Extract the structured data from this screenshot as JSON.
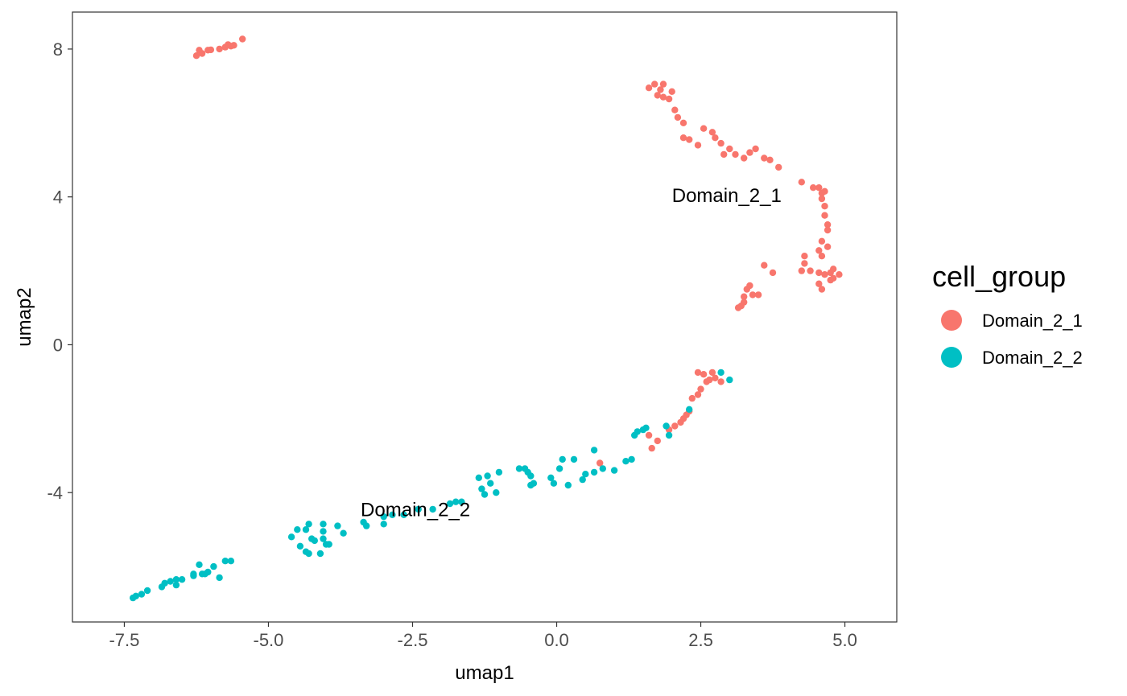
{
  "chart_data": {
    "type": "scatter",
    "xlabel": "umap1",
    "ylabel": "umap2",
    "xlim": [
      -8.4,
      5.9
    ],
    "ylim": [
      -7.5,
      9.0
    ],
    "x_ticks": [
      -7.5,
      -5.0,
      -2.5,
      0.0,
      2.5,
      5.0
    ],
    "x_tick_labels": [
      "-7.5",
      "-5.0",
      "-2.5",
      "0.0",
      "2.5",
      "5.0"
    ],
    "y_ticks": [
      -4,
      0,
      4,
      8
    ],
    "y_tick_labels": [
      "-4",
      "0",
      "4",
      "8"
    ],
    "grid": false,
    "legend": {
      "title": "cell_group",
      "placement": "right",
      "entries": [
        {
          "label": "Domain_2_1",
          "color": "#F8766D"
        },
        {
          "label": "Domain_2_2",
          "color": "#00BFC4"
        }
      ]
    },
    "annotations": [
      {
        "text": "Domain_2_1",
        "x": 2.95,
        "y": 4.0
      },
      {
        "text": "Domain_2_2",
        "x": -2.45,
        "y": -4.5
      }
    ],
    "series": [
      {
        "name": "Domain_2_1",
        "color": "#F8766D",
        "points": [
          [
            -6.25,
            7.82
          ],
          [
            -6.2,
            7.97
          ],
          [
            -6.15,
            7.88
          ],
          [
            -6.05,
            7.97
          ],
          [
            -6.0,
            7.98
          ],
          [
            -5.85,
            8.0
          ],
          [
            -5.75,
            8.05
          ],
          [
            -5.7,
            8.12
          ],
          [
            -5.65,
            8.08
          ],
          [
            -5.6,
            8.1
          ],
          [
            -5.45,
            8.27
          ],
          [
            1.6,
            6.95
          ],
          [
            1.7,
            7.05
          ],
          [
            1.75,
            6.75
          ],
          [
            1.8,
            6.9
          ],
          [
            1.85,
            7.05
          ],
          [
            1.85,
            6.7
          ],
          [
            1.95,
            6.65
          ],
          [
            2.0,
            6.85
          ],
          [
            2.05,
            6.35
          ],
          [
            2.1,
            6.15
          ],
          [
            2.2,
            6.0
          ],
          [
            2.2,
            5.6
          ],
          [
            2.3,
            5.55
          ],
          [
            2.45,
            5.4
          ],
          [
            2.55,
            5.85
          ],
          [
            2.7,
            5.75
          ],
          [
            2.75,
            5.6
          ],
          [
            2.85,
            5.45
          ],
          [
            2.9,
            5.15
          ],
          [
            3.0,
            5.3
          ],
          [
            3.1,
            5.15
          ],
          [
            3.25,
            5.05
          ],
          [
            3.35,
            5.2
          ],
          [
            3.45,
            5.3
          ],
          [
            3.6,
            5.05
          ],
          [
            3.7,
            5.0
          ],
          [
            3.85,
            4.8
          ],
          [
            4.25,
            4.4
          ],
          [
            4.45,
            4.25
          ],
          [
            4.55,
            4.25
          ],
          [
            4.6,
            4.1
          ],
          [
            4.65,
            4.15
          ],
          [
            4.6,
            3.95
          ],
          [
            4.65,
            3.75
          ],
          [
            4.65,
            3.5
          ],
          [
            4.7,
            3.25
          ],
          [
            4.7,
            3.1
          ],
          [
            4.6,
            2.8
          ],
          [
            4.7,
            2.65
          ],
          [
            4.55,
            2.55
          ],
          [
            4.6,
            2.4
          ],
          [
            4.3,
            2.4
          ],
          [
            4.3,
            2.2
          ],
          [
            4.4,
            2.0
          ],
          [
            4.25,
            2.0
          ],
          [
            4.55,
            1.95
          ],
          [
            4.65,
            1.9
          ],
          [
            4.75,
            1.95
          ],
          [
            4.8,
            2.05
          ],
          [
            4.9,
            1.9
          ],
          [
            4.8,
            1.8
          ],
          [
            4.55,
            1.65
          ],
          [
            4.6,
            1.5
          ],
          [
            4.75,
            1.75
          ],
          [
            3.6,
            2.15
          ],
          [
            3.75,
            1.95
          ],
          [
            3.3,
            1.5
          ],
          [
            3.35,
            1.6
          ],
          [
            3.4,
            1.35
          ],
          [
            3.5,
            1.35
          ],
          [
            3.25,
            1.3
          ],
          [
            3.25,
            1.15
          ],
          [
            3.2,
            1.05
          ],
          [
            3.15,
            1.0
          ],
          [
            2.45,
            -0.75
          ],
          [
            2.55,
            -0.8
          ],
          [
            2.65,
            -0.95
          ],
          [
            2.75,
            -0.9
          ],
          [
            2.85,
            -1.0
          ],
          [
            2.7,
            -0.75
          ],
          [
            2.6,
            -1.0
          ],
          [
            2.5,
            -1.2
          ],
          [
            2.45,
            -1.35
          ],
          [
            2.35,
            -1.45
          ],
          [
            2.3,
            -1.8
          ],
          [
            2.25,
            -1.9
          ],
          [
            2.2,
            -2.0
          ],
          [
            2.15,
            -2.1
          ],
          [
            2.05,
            -2.2
          ],
          [
            1.95,
            -2.3
          ],
          [
            1.6,
            -2.45
          ],
          [
            1.75,
            -2.6
          ],
          [
            1.65,
            -2.8
          ],
          [
            0.75,
            -3.2
          ]
        ]
      },
      {
        "name": "Domain_2_2",
        "color": "#00BFC4",
        "points": [
          [
            -7.35,
            -6.85
          ],
          [
            -7.3,
            -6.8
          ],
          [
            -7.2,
            -6.75
          ],
          [
            -7.1,
            -6.65
          ],
          [
            -6.85,
            -6.55
          ],
          [
            -6.8,
            -6.45
          ],
          [
            -6.7,
            -6.4
          ],
          [
            -6.6,
            -6.5
          ],
          [
            -6.6,
            -6.35
          ],
          [
            -6.5,
            -6.35
          ],
          [
            -6.3,
            -6.25
          ],
          [
            -6.3,
            -6.2
          ],
          [
            -6.2,
            -5.95
          ],
          [
            -6.15,
            -6.2
          ],
          [
            -6.1,
            -6.2
          ],
          [
            -6.05,
            -6.15
          ],
          [
            -5.95,
            -6.0
          ],
          [
            -5.85,
            -6.3
          ],
          [
            -5.75,
            -5.85
          ],
          [
            -5.65,
            -5.85
          ],
          [
            -4.6,
            -5.2
          ],
          [
            -4.5,
            -5.0
          ],
          [
            -4.45,
            -5.45
          ],
          [
            -4.35,
            -5.0
          ],
          [
            -4.35,
            -5.6
          ],
          [
            -4.3,
            -4.85
          ],
          [
            -4.3,
            -5.65
          ],
          [
            -4.25,
            -5.25
          ],
          [
            -4.2,
            -5.3
          ],
          [
            -4.1,
            -5.65
          ],
          [
            -4.05,
            -4.85
          ],
          [
            -4.05,
            -5.05
          ],
          [
            -4.05,
            -5.25
          ],
          [
            -4.0,
            -5.4
          ],
          [
            -3.95,
            -5.4
          ],
          [
            -3.8,
            -4.9
          ],
          [
            -3.7,
            -5.1
          ],
          [
            -3.35,
            -4.8
          ],
          [
            -3.3,
            -4.9
          ],
          [
            -3.0,
            -4.65
          ],
          [
            -3.0,
            -4.85
          ],
          [
            -2.85,
            -4.6
          ],
          [
            -2.65,
            -4.6
          ],
          [
            -2.4,
            -4.45
          ],
          [
            -2.15,
            -4.45
          ],
          [
            -1.85,
            -4.3
          ],
          [
            -1.75,
            -4.25
          ],
          [
            -1.65,
            -4.25
          ],
          [
            -1.35,
            -3.6
          ],
          [
            -1.3,
            -3.9
          ],
          [
            -1.25,
            -4.05
          ],
          [
            -1.2,
            -3.55
          ],
          [
            -1.15,
            -3.75
          ],
          [
            -1.05,
            -4.0
          ],
          [
            -1.0,
            -3.45
          ],
          [
            -0.65,
            -3.35
          ],
          [
            -0.55,
            -3.35
          ],
          [
            -0.5,
            -3.45
          ],
          [
            -0.45,
            -3.55
          ],
          [
            -0.4,
            -3.75
          ],
          [
            -0.45,
            -3.8
          ],
          [
            -0.1,
            -3.6
          ],
          [
            -0.05,
            -3.75
          ],
          [
            0.05,
            -3.35
          ],
          [
            0.1,
            -3.1
          ],
          [
            0.2,
            -3.8
          ],
          [
            0.3,
            -3.1
          ],
          [
            0.45,
            -3.65
          ],
          [
            0.5,
            -3.5
          ],
          [
            0.65,
            -3.45
          ],
          [
            0.65,
            -2.85
          ],
          [
            0.8,
            -3.35
          ],
          [
            1.0,
            -3.4
          ],
          [
            1.2,
            -3.15
          ],
          [
            1.3,
            -3.1
          ],
          [
            1.35,
            -2.45
          ],
          [
            1.4,
            -2.35
          ],
          [
            1.5,
            -2.3
          ],
          [
            1.55,
            -2.25
          ],
          [
            1.9,
            -2.2
          ],
          [
            1.95,
            -2.45
          ],
          [
            2.3,
            -1.75
          ],
          [
            2.85,
            -0.75
          ],
          [
            3.0,
            -0.95
          ]
        ]
      }
    ]
  }
}
